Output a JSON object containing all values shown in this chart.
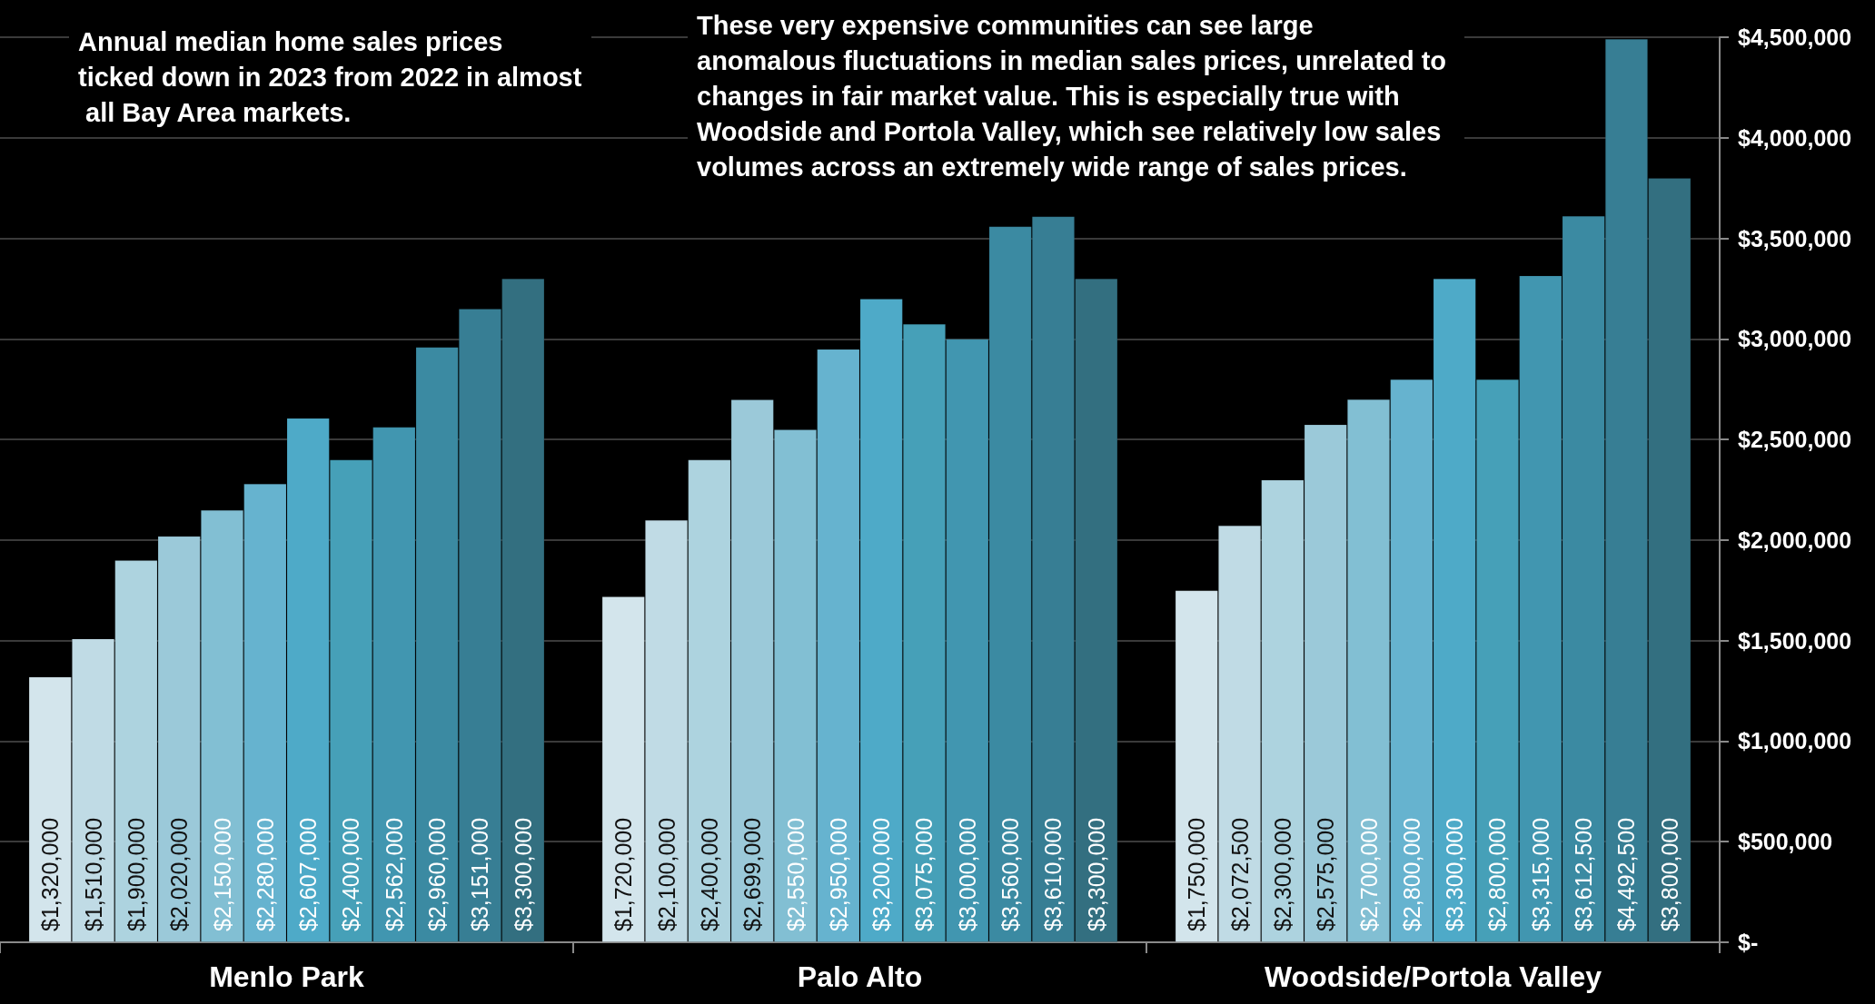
{
  "chart_data": {
    "type": "bar",
    "categories": [
      "Menlo Park",
      "Palo Alto",
      "Woodside/Portola Valley"
    ],
    "series": [
      {
        "color": "#d3e5ec",
        "values": [
          1320000,
          1720000,
          1750000
        ],
        "value_labels": [
          "$1,320,000",
          "$1,720,000",
          "$1,750,000"
        ]
      },
      {
        "color": "#c0dbe5",
        "values": [
          1510000,
          2100000,
          2072500
        ],
        "value_labels": [
          "$1,510,000",
          "$2,100,000",
          "$2,072,500"
        ]
      },
      {
        "color": "#add3df",
        "values": [
          1900000,
          2400000,
          2300000
        ],
        "value_labels": [
          "$1,900,000",
          "$2,400,000",
          "$2,300,000"
        ]
      },
      {
        "color": "#9bc9d9",
        "values": [
          2020000,
          2699000,
          2575000
        ],
        "value_labels": [
          "$2,020,000",
          "$2,699,000",
          "$2,575,000"
        ]
      },
      {
        "color": "#82bfd3",
        "values": [
          2150000,
          2550000,
          2700000
        ],
        "value_labels": [
          "$2,150,000",
          "$2,550,000",
          "$2,700,000"
        ]
      },
      {
        "color": "#66b3cf",
        "values": [
          2280000,
          2950000,
          2800000
        ],
        "value_labels": [
          "$2,280,000",
          "$2,950,000",
          "$2,800,000"
        ]
      },
      {
        "color": "#4eaac8",
        "values": [
          2607000,
          3200000,
          3300000
        ],
        "value_labels": [
          "$2,607,000",
          "$3,200,000",
          "$3,300,000"
        ]
      },
      {
        "color": "#46a0b8",
        "values": [
          2400000,
          3075000,
          2800000
        ],
        "value_labels": [
          "$2,400,000",
          "$3,075,000",
          "$2,800,000"
        ]
      },
      {
        "color": "#4196b0",
        "values": [
          2562000,
          3000000,
          3315000
        ],
        "value_labels": [
          "$2,562,000",
          "$3,000,000",
          "$3,315,000"
        ]
      },
      {
        "color": "#3b8aa2",
        "values": [
          2960000,
          3560000,
          3612500
        ],
        "value_labels": [
          "$2,960,000",
          "$3,560,000",
          "$3,612,500"
        ]
      },
      {
        "color": "#377e94",
        "values": [
          3151000,
          3610000,
          4492500
        ],
        "value_labels": [
          "$3,151,000",
          "$3,610,000",
          "$4,492,500"
        ]
      },
      {
        "color": "#336f80",
        "values": [
          3300000,
          3300000,
          3800000
        ],
        "value_labels": [
          "$3,300,000",
          "$3,300,000",
          "$3,800,000"
        ]
      }
    ],
    "ylim": [
      0,
      4500000
    ],
    "yticks": [
      {
        "value": 0,
        "label": "$-"
      },
      {
        "value": 500000,
        "label": "$500,000"
      },
      {
        "value": 1000000,
        "label": "$1,000,000"
      },
      {
        "value": 1500000,
        "label": "$1,500,000"
      },
      {
        "value": 2000000,
        "label": "$2,000,000"
      },
      {
        "value": 2500000,
        "label": "$2,500,000"
      },
      {
        "value": 3000000,
        "label": "$3,000,000"
      },
      {
        "value": 3500000,
        "label": "$3,500,000"
      },
      {
        "value": 4000000,
        "label": "$4,000,000"
      },
      {
        "value": 4500000,
        "label": "$4,500,000"
      }
    ],
    "grid": "y",
    "annotations": [
      "Annual median home sales prices ticked down in 2023 from 2022 in almost all Bay Area markets.",
      "These very expensive communities can see large anomalous fluctuations in median sales prices, unrelated to changes in fair market value. This is especially true with Woodside and Portola Valley, which see relatively low sales volumes across an extremely wide range of sales prices."
    ]
  }
}
